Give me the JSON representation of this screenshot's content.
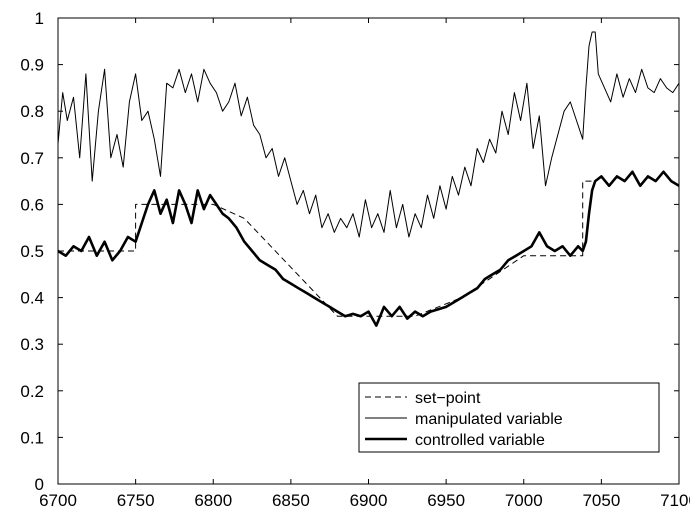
{
  "chart_data": {
    "type": "line",
    "title": "",
    "xlabel": "",
    "ylabel": "",
    "xlim": [
      6700,
      7100
    ],
    "ylim": [
      0,
      1
    ],
    "xticks": [
      6700,
      6750,
      6800,
      6850,
      6900,
      6950,
      7000,
      7050,
      7100
    ],
    "xtick_labels": [
      "6700",
      "6750",
      "6800",
      "6850",
      "6900",
      "6950",
      "7000",
      "7050",
      "7100"
    ],
    "yticks": [
      0,
      0.1,
      0.2,
      0.3,
      0.4,
      0.5,
      0.6,
      0.7,
      0.8,
      0.9,
      1
    ],
    "ytick_labels": [
      "0",
      "0.1",
      "0.2",
      "0.3",
      "0.4",
      "0.5",
      "0.6",
      "0.7",
      "0.8",
      "0.9",
      "1"
    ],
    "grid": false,
    "legend_position": "lower-right",
    "colors": {
      "line": "#000000",
      "background": "#ffffff"
    },
    "series": [
      {
        "name": "set−point",
        "style": "dashed",
        "x": [
          6700,
          6750,
          6750,
          6800,
          6820,
          6880,
          6930,
          6960,
          7000,
          7038,
          7038,
          7045
        ],
        "y": [
          0.5,
          0.5,
          0.6,
          0.6,
          0.57,
          0.36,
          0.36,
          0.4,
          0.49,
          0.49,
          0.65,
          0.65
        ]
      },
      {
        "name": "manipulated variable",
        "style": "solid-thin",
        "x": [
          6700,
          6703,
          6706,
          6710,
          6714,
          6718,
          6722,
          6726,
          6730,
          6734,
          6738,
          6742,
          6746,
          6750,
          6754,
          6758,
          6762,
          6766,
          6770,
          6774,
          6778,
          6782,
          6786,
          6790,
          6794,
          6798,
          6802,
          6806,
          6810,
          6814,
          6818,
          6822,
          6826,
          6830,
          6834,
          6838,
          6842,
          6846,
          6850,
          6854,
          6858,
          6862,
          6866,
          6870,
          6874,
          6878,
          6882,
          6886,
          6890,
          6894,
          6898,
          6902,
          6906,
          6910,
          6914,
          6918,
          6922,
          6926,
          6930,
          6934,
          6938,
          6942,
          6946,
          6950,
          6954,
          6958,
          6962,
          6966,
          6970,
          6974,
          6978,
          6982,
          6986,
          6990,
          6994,
          6998,
          7002,
          7006,
          7010,
          7014,
          7018,
          7022,
          7026,
          7030,
          7034,
          7038,
          7040,
          7042,
          7044,
          7046,
          7048,
          7052,
          7056,
          7060,
          7064,
          7068,
          7072,
          7076,
          7080,
          7084,
          7088,
          7092,
          7096,
          7100
        ],
        "y": [
          0.73,
          0.84,
          0.78,
          0.83,
          0.7,
          0.88,
          0.65,
          0.8,
          0.89,
          0.7,
          0.75,
          0.68,
          0.82,
          0.88,
          0.78,
          0.8,
          0.74,
          0.66,
          0.86,
          0.85,
          0.89,
          0.84,
          0.88,
          0.82,
          0.89,
          0.86,
          0.84,
          0.8,
          0.82,
          0.86,
          0.79,
          0.83,
          0.77,
          0.75,
          0.7,
          0.72,
          0.66,
          0.7,
          0.65,
          0.6,
          0.63,
          0.58,
          0.62,
          0.55,
          0.58,
          0.54,
          0.57,
          0.55,
          0.58,
          0.53,
          0.61,
          0.55,
          0.58,
          0.54,
          0.63,
          0.55,
          0.6,
          0.53,
          0.58,
          0.55,
          0.62,
          0.57,
          0.64,
          0.59,
          0.66,
          0.62,
          0.68,
          0.64,
          0.72,
          0.69,
          0.74,
          0.71,
          0.8,
          0.75,
          0.84,
          0.78,
          0.86,
          0.72,
          0.79,
          0.64,
          0.7,
          0.75,
          0.8,
          0.82,
          0.78,
          0.74,
          0.85,
          0.94,
          0.97,
          0.97,
          0.88,
          0.85,
          0.82,
          0.88,
          0.83,
          0.87,
          0.84,
          0.89,
          0.85,
          0.84,
          0.87,
          0.85,
          0.84,
          0.86
        ]
      },
      {
        "name": "controlled variable",
        "style": "solid-thick",
        "x": [
          6700,
          6705,
          6710,
          6715,
          6720,
          6725,
          6730,
          6735,
          6740,
          6745,
          6750,
          6754,
          6758,
          6762,
          6766,
          6770,
          6774,
          6778,
          6782,
          6786,
          6790,
          6794,
          6798,
          6802,
          6806,
          6810,
          6815,
          6820,
          6825,
          6830,
          6835,
          6840,
          6845,
          6850,
          6855,
          6860,
          6865,
          6870,
          6875,
          6880,
          6885,
          6890,
          6895,
          6900,
          6905,
          6910,
          6915,
          6920,
          6925,
          6930,
          6935,
          6940,
          6945,
          6950,
          6955,
          6960,
          6965,
          6970,
          6975,
          6980,
          6985,
          6990,
          6995,
          7000,
          7005,
          7010,
          7015,
          7020,
          7025,
          7030,
          7035,
          7038,
          7040,
          7042,
          7044,
          7046,
          7050,
          7055,
          7060,
          7065,
          7070,
          7075,
          7080,
          7085,
          7090,
          7095,
          7100
        ],
        "y": [
          0.5,
          0.49,
          0.51,
          0.5,
          0.53,
          0.49,
          0.52,
          0.48,
          0.5,
          0.53,
          0.52,
          0.56,
          0.6,
          0.63,
          0.58,
          0.61,
          0.56,
          0.63,
          0.6,
          0.56,
          0.63,
          0.59,
          0.62,
          0.6,
          0.58,
          0.57,
          0.55,
          0.52,
          0.5,
          0.48,
          0.47,
          0.46,
          0.44,
          0.43,
          0.42,
          0.41,
          0.4,
          0.39,
          0.38,
          0.37,
          0.36,
          0.365,
          0.36,
          0.37,
          0.34,
          0.38,
          0.36,
          0.38,
          0.355,
          0.37,
          0.36,
          0.37,
          0.375,
          0.38,
          0.39,
          0.4,
          0.41,
          0.42,
          0.44,
          0.45,
          0.46,
          0.48,
          0.49,
          0.5,
          0.51,
          0.54,
          0.51,
          0.5,
          0.51,
          0.49,
          0.51,
          0.5,
          0.52,
          0.58,
          0.63,
          0.65,
          0.66,
          0.64,
          0.66,
          0.65,
          0.67,
          0.64,
          0.66,
          0.65,
          0.67,
          0.65,
          0.64
        ]
      }
    ]
  }
}
